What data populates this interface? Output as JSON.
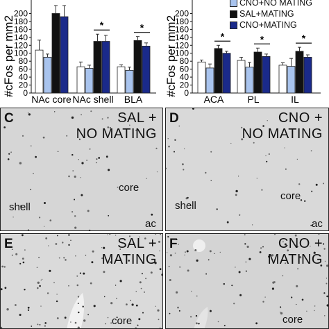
{
  "chart_data": [
    {
      "type": "bar",
      "ylabel": "#cFos per mm2",
      "ylim": [
        0,
        220
      ],
      "yticks": [
        0,
        20,
        40,
        60,
        80,
        100,
        120,
        140,
        160,
        180,
        200
      ],
      "categories": [
        "NAc core",
        "NAc shell",
        "BLA"
      ],
      "series": [
        {
          "name": "SAL+NO MATING",
          "values": [
            108,
            66,
            66
          ],
          "errors": [
            25,
            12,
            5
          ]
        },
        {
          "name": "CNO+NO MATING",
          "values": [
            90,
            62,
            57
          ],
          "errors": [
            8,
            8,
            8
          ]
        },
        {
          "name": "SAL+MATING",
          "values": [
            200,
            130,
            132
          ],
          "errors": [
            20,
            18,
            10
          ]
        },
        {
          "name": "CNO+MATING",
          "values": [
            192,
            130,
            118
          ],
          "errors": [
            28,
            15,
            8
          ]
        }
      ],
      "significance": [
        {
          "label": "*",
          "category": "NAc shell"
        },
        {
          "label": "*",
          "category": "BLA"
        }
      ]
    },
    {
      "type": "bar",
      "ylabel": "#cFos per mm2",
      "ylim": [
        0,
        220
      ],
      "yticks": [
        0,
        20,
        40,
        60,
        80,
        100,
        120,
        140,
        160,
        180,
        200
      ],
      "categories": [
        "ACA",
        "PL",
        "IL"
      ],
      "series": [
        {
          "name": "SAL+NO MATING",
          "values": [
            78,
            82,
            70
          ],
          "errors": [
            5,
            8,
            6
          ]
        },
        {
          "name": "CNO+NO MATING",
          "values": [
            63,
            65,
            67
          ],
          "errors": [
            10,
            12,
            20
          ]
        },
        {
          "name": "SAL+MATING",
          "values": [
            112,
            103,
            105
          ],
          "errors": [
            8,
            10,
            10
          ]
        },
        {
          "name": "CNO+MATING",
          "values": [
            100,
            92,
            90
          ],
          "errors": [
            5,
            6,
            6
          ]
        }
      ],
      "significance": [
        {
          "label": "*",
          "category": "ACA"
        },
        {
          "label": "*",
          "category": "PL"
        },
        {
          "label": "*",
          "category": "IL"
        }
      ]
    }
  ],
  "legend": [
    {
      "label": "CNO+NO MATING",
      "color": "#a9c4ee"
    },
    {
      "label": "SAL+MATING",
      "color": "#111111"
    },
    {
      "label": "CNO+MATING",
      "color": "#1a2a8a"
    }
  ],
  "colors": {
    "sal_no_mating": "#ffffff",
    "cno_no_mating": "#a9c4ee",
    "sal_mating": "#111111",
    "cno_mating": "#1a2a8a"
  },
  "panels": [
    {
      "letter": "C",
      "condition_line1": "SAL +",
      "condition_line2": "NO MATING",
      "regions": [
        "core",
        "shell",
        "ac"
      ]
    },
    {
      "letter": "D",
      "condition_line1": "CNO +",
      "condition_line2": "NO MATING",
      "regions": [
        "core",
        "shell",
        "ac"
      ]
    },
    {
      "letter": "E",
      "condition_line1": "SAL +",
      "condition_line2": "MATING",
      "regions": [
        "core"
      ]
    },
    {
      "letter": "F",
      "condition_line1": "CNO +",
      "condition_line2": "MATING",
      "regions": [
        "core"
      ]
    }
  ]
}
